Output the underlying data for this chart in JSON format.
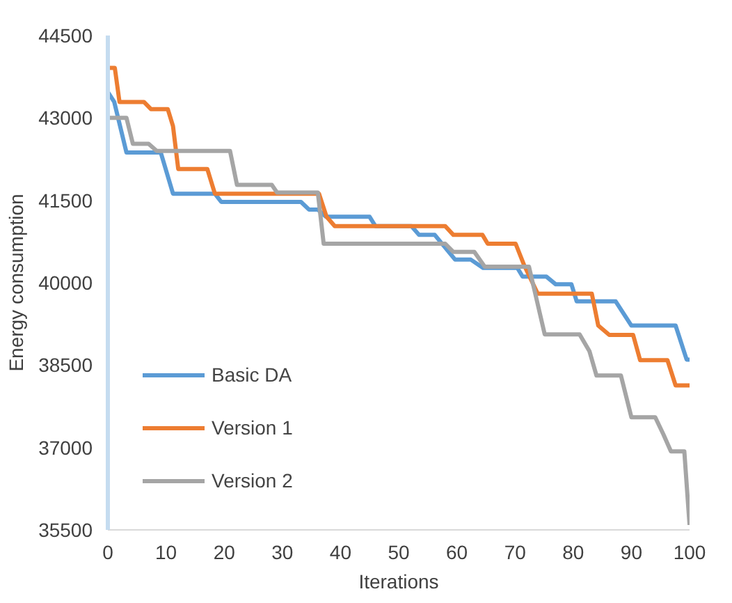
{
  "chart_data": {
    "type": "line",
    "xlabel": "Iterations",
    "ylabel": "Energy consumption",
    "xlim": [
      0,
      100
    ],
    "xticks": [
      0,
      10,
      20,
      30,
      40,
      50,
      60,
      70,
      80,
      90,
      100
    ],
    "ylim": [
      35500,
      44500
    ],
    "yticks": [
      35500,
      37000,
      38500,
      40000,
      41500,
      43000,
      44500
    ],
    "grid": false,
    "legend": "bottom left",
    "marker": "none",
    "line_style": "solid",
    "series": [
      {
        "name": "Basic DA",
        "color": "#5b9bd5",
        "x": [
          0,
          1.1,
          3.2,
          9.1,
          11.2,
          18.4,
          19.5,
          33.2,
          34.6,
          36.1,
          37.5,
          45,
          46,
          52.2,
          53.5,
          56.2,
          59.7,
          62.4,
          64.5,
          70.4,
          71.3,
          75.4,
          77,
          79.7,
          80.6,
          87.3,
          90,
          97.6,
          99.5,
          100
        ],
        "values": [
          43470,
          43290,
          42370,
          42370,
          41620,
          41620,
          41470,
          41470,
          41330,
          41330,
          41200,
          41200,
          41030,
          41030,
          40870,
          40870,
          40420,
          40420,
          40270,
          40270,
          40110,
          40110,
          39970,
          39970,
          39660,
          39660,
          39220,
          39220,
          38600,
          38600
        ]
      },
      {
        "name": "Version 1",
        "color": "#ed7d31",
        "x": [
          0,
          1.2,
          2,
          6.2,
          7.4,
          10.3,
          11.2,
          12.1,
          17.1,
          18.4,
          36.3,
          37.6,
          39,
          58,
          59.4,
          64.4,
          65.3,
          70.1,
          71.6,
          73.9,
          83.2,
          84.3,
          86.2,
          90.3,
          91.5,
          96.2,
          97.6,
          100
        ],
        "values": [
          43910,
          43910,
          43290,
          43290,
          43160,
          43160,
          42850,
          42070,
          42070,
          41620,
          41620,
          41200,
          41030,
          41030,
          40870,
          40870,
          40710,
          40710,
          40310,
          39800,
          39800,
          39220,
          39050,
          39050,
          38590,
          38590,
          38130,
          38130
        ]
      },
      {
        "name": "Version 2",
        "color": "#a5a5a5",
        "x": [
          0,
          3.2,
          4.3,
          7,
          8.4,
          21,
          22.2,
          28.2,
          29.1,
          36.1,
          37.1,
          58,
          59.4,
          63,
          64.8,
          72.4,
          75.1,
          81.1,
          82.8,
          84,
          88.2,
          90,
          94.1,
          95.5,
          96.8,
          99.1,
          100
        ],
        "values": [
          43000,
          43000,
          42530,
          42530,
          42400,
          42400,
          41780,
          41780,
          41640,
          41640,
          40710,
          40710,
          40560,
          40560,
          40290,
          40290,
          39060,
          39060,
          38750,
          38310,
          38310,
          37550,
          37550,
          37240,
          36930,
          36930,
          35590
        ]
      }
    ]
  }
}
